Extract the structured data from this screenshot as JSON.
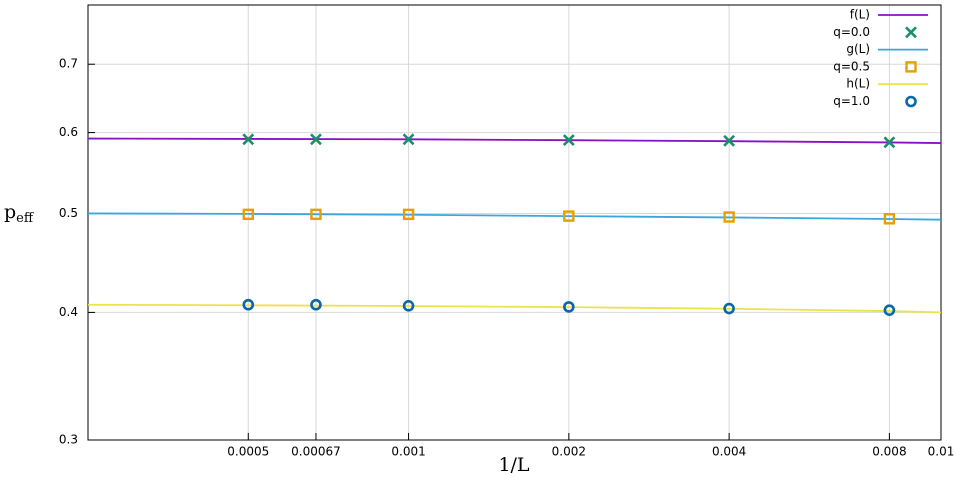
{
  "chart_data": {
    "type": "scatter",
    "xlabel": "1/L",
    "ylabel": "p",
    "ylabel_sub": "eff",
    "xscale": "log",
    "yscale": "log",
    "grid": true,
    "legend": "upper right",
    "xlim": [
      0.00025,
      0.01
    ],
    "ylim": [
      0.3,
      0.8
    ],
    "xticks": [
      0.0005,
      0.00067,
      0.001,
      0.002,
      0.004,
      0.008,
      0.01
    ],
    "yticks": [
      0.3,
      0.4,
      0.5,
      0.6,
      0.7
    ],
    "series": [
      {
        "name": "f(L)",
        "color": "#8a10c8",
        "marker": "line",
        "x": [
          0.00025,
          0.0005,
          0.001,
          0.002,
          0.004,
          0.008,
          0.01
        ],
        "values": [
          0.592,
          0.5915,
          0.591,
          0.5898,
          0.5885,
          0.5868,
          0.586
        ]
      },
      {
        "name": "q=0.0",
        "color": "#1a8f6e",
        "marker": "x",
        "x": [
          0.0005,
          0.00067,
          0.001,
          0.002,
          0.004,
          0.008
        ],
        "values": [
          0.591,
          0.591,
          0.591,
          0.59,
          0.589,
          0.587
        ]
      },
      {
        "name": "g(L)",
        "color": "#3aa6e0",
        "marker": "line",
        "x": [
          0.00025,
          0.0005,
          0.001,
          0.002,
          0.004,
          0.008,
          0.01
        ],
        "values": [
          0.5,
          0.4995,
          0.4985,
          0.497,
          0.4955,
          0.4938,
          0.493
        ]
      },
      {
        "name": "q=0.5",
        "color": "#e69f00",
        "marker": "square",
        "x": [
          0.0005,
          0.00067,
          0.001,
          0.002,
          0.004,
          0.008
        ],
        "values": [
          0.499,
          0.499,
          0.499,
          0.497,
          0.496,
          0.494
        ]
      },
      {
        "name": "h(L)",
        "color": "#ece34a",
        "marker": "line",
        "x": [
          0.00025,
          0.0005,
          0.001,
          0.002,
          0.004,
          0.008,
          0.01
        ],
        "values": [
          0.407,
          0.4065,
          0.4058,
          0.4048,
          0.4033,
          0.4012,
          0.4
        ]
      },
      {
        "name": "q=1.0",
        "color": "#0a68a8",
        "marker": "circle",
        "x": [
          0.0005,
          0.00067,
          0.001,
          0.002,
          0.004,
          0.008
        ],
        "values": [
          0.407,
          0.407,
          0.406,
          0.405,
          0.4035,
          0.402
        ]
      }
    ]
  }
}
